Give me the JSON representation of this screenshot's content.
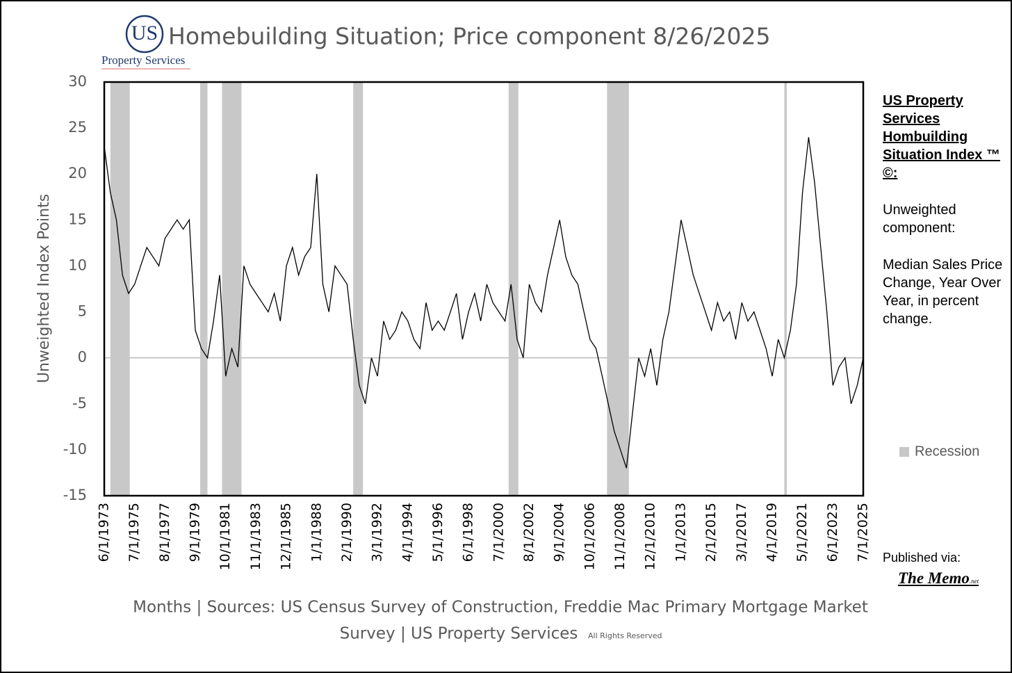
{
  "chart_data": {
    "type": "line",
    "title": "Homebuilding Situation; Price component 8/26/2025",
    "logo": {
      "mark": "US",
      "name": "Property Services"
    },
    "y_label": "Unweighted Index Points",
    "x_label": [
      "Months | Sources: US Census Survey of Construction, Freddie Mac Primary Mortgage Market",
      "Survey | US Property Services"
    ],
    "rights": "All Rights Reserved",
    "sidebar": {
      "heading": "US Property Services Hombuilding Situation Index ™ ©:",
      "line1": "Unweighted component:",
      "line2": "Median Sales Price Change, Year Over Year, in percent change."
    },
    "published": {
      "label": "Published via:",
      "name": "The Memo",
      "suffix": ".net"
    },
    "ylim": [
      -15,
      30
    ],
    "yticks": [
      -15,
      -10,
      -5,
      0,
      5,
      10,
      15,
      20,
      25,
      30
    ],
    "xticks": [
      "6/1/1973",
      "7/1/1975",
      "8/1/1977",
      "9/1/1979",
      "10/1/1981",
      "11/1/1983",
      "12/1/1985",
      "1/1/1988",
      "2/1/1990",
      "3/1/1992",
      "4/1/1994",
      "5/1/1996",
      "6/1/1998",
      "7/1/2000",
      "8/1/2002",
      "9/1/2004",
      "10/1/2006",
      "11/1/2008",
      "12/1/2010",
      "1/1/2013",
      "2/1/2015",
      "3/1/2017",
      "4/1/2019",
      "5/1/2021",
      "6/1/2023",
      "7/1/2025"
    ],
    "x": [
      "6/1/1973",
      "11/1/1973",
      "4/1/1974",
      "9/1/1974",
      "2/1/1975",
      "7/1/1975",
      "12/1/1975",
      "5/1/1976",
      "10/1/1976",
      "3/1/1977",
      "8/1/1977",
      "1/1/1978",
      "6/1/1978",
      "11/1/1978",
      "4/1/1979",
      "9/1/1979",
      "2/1/1980",
      "7/1/1980",
      "12/1/1980",
      "5/1/1981",
      "10/1/1981",
      "3/1/1982",
      "8/1/1982",
      "1/1/1983",
      "6/1/1983",
      "11/1/1983",
      "4/1/1984",
      "9/1/1984",
      "2/1/1985",
      "7/1/1985",
      "12/1/1985",
      "5/1/1986",
      "10/1/1986",
      "3/1/1987",
      "8/1/1987",
      "1/1/1988",
      "6/1/1988",
      "11/1/1988",
      "4/1/1989",
      "9/1/1989",
      "2/1/1990",
      "7/1/1990",
      "12/1/1990",
      "5/1/1991",
      "10/1/1991",
      "3/1/1992",
      "8/1/1992",
      "1/1/1993",
      "6/1/1993",
      "11/1/1993",
      "4/1/1994",
      "9/1/1994",
      "2/1/1995",
      "7/1/1995",
      "12/1/1995",
      "5/1/1996",
      "10/1/1996",
      "3/1/1997",
      "8/1/1997",
      "1/1/1998",
      "6/1/1998",
      "11/1/1998",
      "4/1/1999",
      "9/1/1999",
      "2/1/2000",
      "7/1/2000",
      "12/1/2000",
      "5/1/2001",
      "10/1/2001",
      "3/1/2002",
      "8/1/2002",
      "1/1/2003",
      "6/1/2003",
      "11/1/2003",
      "4/1/2004",
      "9/1/2004",
      "2/1/2005",
      "7/1/2005",
      "12/1/2005",
      "5/1/2006",
      "10/1/2006",
      "3/1/2007",
      "8/1/2007",
      "1/1/2008",
      "6/1/2008",
      "11/1/2008",
      "4/1/2009",
      "9/1/2009",
      "2/1/2010",
      "7/1/2010",
      "12/1/2010",
      "5/1/2011",
      "10/1/2011",
      "3/1/2012",
      "8/1/2012",
      "1/1/2013",
      "6/1/2013",
      "11/1/2013",
      "4/1/2014",
      "9/1/2014",
      "2/1/2015",
      "7/1/2015",
      "12/1/2015",
      "5/1/2016",
      "10/1/2016",
      "3/1/2017",
      "8/1/2017",
      "1/1/2018",
      "6/1/2018",
      "11/1/2018",
      "4/1/2019",
      "9/1/2019",
      "2/1/2020",
      "7/1/2020",
      "12/1/2020",
      "5/1/2021",
      "10/1/2021",
      "3/1/2022",
      "8/1/2022",
      "1/1/2023",
      "6/1/2023",
      "11/1/2023",
      "4/1/2024",
      "9/1/2024",
      "2/1/2025",
      "7/1/2025"
    ],
    "series": [
      {
        "name": "Price component",
        "color": "#000000",
        "values": [
          23,
          18,
          15,
          9,
          7,
          8,
          10,
          12,
          11,
          10,
          13,
          14,
          15,
          14,
          15,
          3,
          1,
          0,
          4,
          9,
          -2,
          1,
          -1,
          10,
          8,
          7,
          6,
          5,
          7,
          4,
          10,
          12,
          9,
          11,
          12,
          20,
          8,
          5,
          10,
          9,
          8,
          2,
          -3,
          -5,
          0,
          -2,
          4,
          2,
          3,
          5,
          4,
          2,
          1,
          6,
          3,
          4,
          3,
          5,
          7,
          2,
          5,
          7,
          4,
          8,
          6,
          5,
          4,
          8,
          2,
          0,
          8,
          6,
          5,
          9,
          12,
          15,
          11,
          9,
          8,
          5,
          2,
          1,
          -2,
          -5,
          -8,
          -10,
          -12,
          -6,
          0,
          -2,
          1,
          -3,
          2,
          5,
          10,
          15,
          12,
          9,
          7,
          5,
          3,
          6,
          4,
          5,
          2,
          6,
          4,
          5,
          3,
          1,
          -2,
          2,
          0,
          3,
          8,
          18,
          24,
          19,
          12,
          5,
          -3,
          -1,
          0,
          -5,
          -3,
          0
        ]
      }
    ],
    "recession": {
      "name": "Recession",
      "color": "#c8c8c8",
      "periods": [
        [
          "11/1/1973",
          "3/1/1975"
        ],
        [
          "1/1/1980",
          "7/1/1980"
        ],
        [
          "7/1/1981",
          "11/1/1982"
        ],
        [
          "7/1/1990",
          "3/1/1991"
        ],
        [
          "3/1/2001",
          "11/1/2001"
        ],
        [
          "12/1/2007",
          "6/1/2009"
        ],
        [
          "2/1/2020",
          "4/1/2020"
        ]
      ]
    },
    "zero_line_color": "#c8c8c8"
  }
}
